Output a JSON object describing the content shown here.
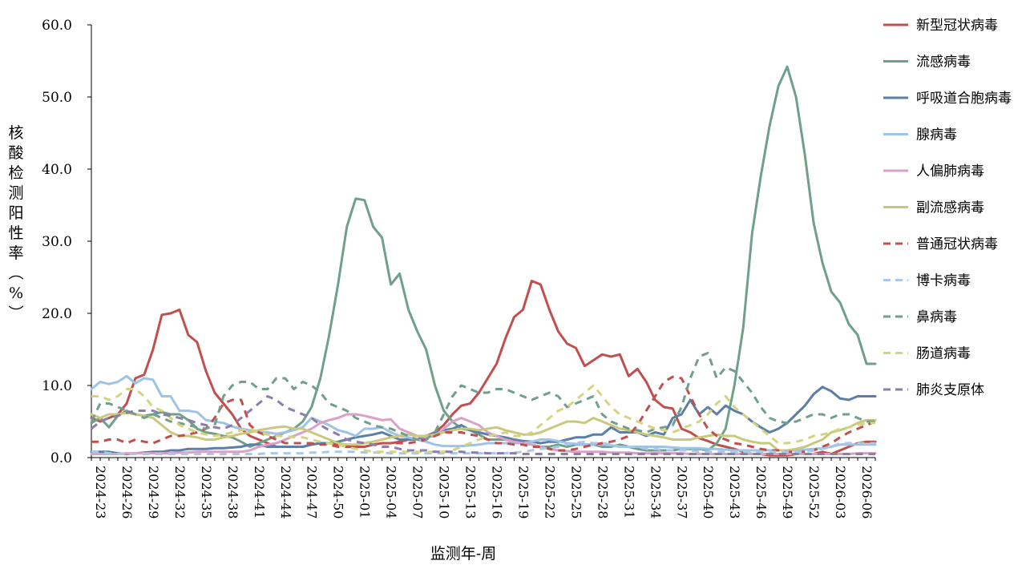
{
  "chart_data": {
    "type": "line",
    "xlabel": "监测年-周",
    "ylabel": "核酸检测阳性率（%）",
    "ylim": [
      0,
      60
    ],
    "yticks": [
      "0.0",
      "10.0",
      "20.0",
      "30.0",
      "40.0",
      "50.0",
      "60.0"
    ],
    "x_tick_labels": [
      "2024-23",
      "2024-26",
      "2024-29",
      "2024-32",
      "2024-35",
      "2024-38",
      "2024-41",
      "2024-44",
      "2024-47",
      "2024-50",
      "2025-01",
      "2025-04",
      "2025-07",
      "2025-10",
      "2025-13",
      "2025-16",
      "2025-19",
      "2025-22",
      "2025-25",
      "2025-28",
      "2025-31",
      "2025-34",
      "2025-37",
      "2025-40",
      "2025-43",
      "2025-46",
      "2025-49",
      "2025-52",
      "2026-03",
      "2026-06"
    ],
    "x": [
      "2024-23",
      "2024-24",
      "2024-25",
      "2024-26",
      "2024-27",
      "2024-28",
      "2024-29",
      "2024-30",
      "2024-31",
      "2024-32",
      "2024-33",
      "2024-34",
      "2024-35",
      "2024-36",
      "2024-37",
      "2024-38",
      "2024-39",
      "2024-40",
      "2024-41",
      "2024-42",
      "2024-43",
      "2024-44",
      "2024-45",
      "2024-46",
      "2024-47",
      "2024-48",
      "2024-49",
      "2024-50",
      "2024-51",
      "2024-52",
      "2025-01",
      "2025-02",
      "2025-03",
      "2025-04",
      "2025-05",
      "2025-06",
      "2025-07",
      "2025-08",
      "2025-09",
      "2025-10",
      "2025-11",
      "2025-12",
      "2025-13",
      "2025-14",
      "2025-15",
      "2025-16",
      "2025-17",
      "2025-18",
      "2025-19",
      "2025-20",
      "2025-21",
      "2025-22",
      "2025-23",
      "2025-24",
      "2025-25",
      "2025-26",
      "2025-27",
      "2025-28",
      "2025-29",
      "2025-30",
      "2025-31",
      "2025-32",
      "2025-33",
      "2025-34",
      "2025-35",
      "2025-36",
      "2025-37",
      "2025-38",
      "2025-39",
      "2025-40",
      "2025-41",
      "2025-42",
      "2025-43",
      "2025-44",
      "2025-45",
      "2025-46",
      "2025-47",
      "2025-48",
      "2025-49",
      "2025-50",
      "2025-51",
      "2025-52",
      "2026-01",
      "2026-02",
      "2026-03",
      "2026-04",
      "2026-05",
      "2026-06",
      "2026-07",
      "2026-08"
    ],
    "legend_position": "right",
    "grid": false,
    "series": [
      {
        "name": "新型冠状病毒",
        "color": "#C0504D",
        "style": "solid",
        "values": [
          5.5,
          5.0,
          5.5,
          6.0,
          7.5,
          11.0,
          11.5,
          15.0,
          19.8,
          20.0,
          20.5,
          17.0,
          16.0,
          12.0,
          9.0,
          7.5,
          6.0,
          4.0,
          3.0,
          2.5,
          2.0,
          1.5,
          1.5,
          1.5,
          1.5,
          1.8,
          2.0,
          2.0,
          1.8,
          1.5,
          1.5,
          1.5,
          1.8,
          2.0,
          2.0,
          2.2,
          2.5,
          2.5,
          3.0,
          3.5,
          4.5,
          6.0,
          7.2,
          7.5,
          9.0,
          11.0,
          13.0,
          16.5,
          19.5,
          20.5,
          24.5,
          24.0,
          20.5,
          17.5,
          15.8,
          15.2,
          12.7,
          13.5,
          14.3,
          14.0,
          14.3,
          11.3,
          12.3,
          10.5,
          8.0,
          7.0,
          6.8,
          4.0,
          3.5,
          2.7,
          2.3,
          1.8,
          1.5,
          1.2,
          0.8,
          0.5,
          0.5,
          0.3,
          0.3,
          0.3,
          0.5,
          0.5,
          0.5,
          0.8,
          0.5,
          1.0,
          1.5,
          2.0,
          2.2,
          2.2
        ]
      },
      {
        "name": "流感病毒",
        "color": "#71A08A",
        "style": "solid",
        "values": [
          4.8,
          5.5,
          4.2,
          5.8,
          6.5,
          6.0,
          5.8,
          6.0,
          6.3,
          6.0,
          6.0,
          5.2,
          4.0,
          3.5,
          3.3,
          3.0,
          2.8,
          2.2,
          1.5,
          2.0,
          2.5,
          3.0,
          3.5,
          4.0,
          5.0,
          7.0,
          11.0,
          17.0,
          24.0,
          32.0,
          35.9,
          35.7,
          32.0,
          30.5,
          24.0,
          25.5,
          20.5,
          17.5,
          15.0,
          10.0,
          6.5,
          5.0,
          4.0,
          3.8,
          3.2,
          2.5,
          2.5,
          2.5,
          2.2,
          2.0,
          1.8,
          1.5,
          1.5,
          1.8,
          1.5,
          1.8,
          1.8,
          1.8,
          1.5,
          1.5,
          1.8,
          1.5,
          1.2,
          1.0,
          1.0,
          1.0,
          1.0,
          1.2,
          1.2,
          1.2,
          1.0,
          2.0,
          4.0,
          10.0,
          18.0,
          31.0,
          39.0,
          46.0,
          51.5,
          54.2,
          50.0,
          42.0,
          32.5,
          27.0,
          23.0,
          21.5,
          18.5,
          17.0,
          13.0,
          13.0
        ]
      },
      {
        "name": "呼吸道合胞病毒",
        "color": "#5B7FA8",
        "style": "solid",
        "values": [
          0.8,
          0.8,
          0.8,
          0.6,
          0.5,
          0.6,
          0.7,
          0.8,
          0.8,
          1.0,
          1.0,
          1.2,
          1.2,
          1.2,
          1.3,
          1.3,
          1.4,
          1.5,
          1.8,
          1.8,
          1.5,
          1.5,
          1.5,
          1.5,
          1.5,
          1.8,
          2.0,
          2.0,
          2.2,
          2.5,
          2.8,
          3.0,
          3.2,
          3.5,
          3.0,
          2.5,
          2.5,
          2.5,
          2.8,
          3.5,
          3.8,
          4.0,
          4.5,
          3.8,
          3.5,
          3.2,
          3.0,
          2.8,
          2.5,
          2.3,
          2.2,
          2.0,
          2.2,
          2.2,
          2.5,
          2.8,
          2.8,
          3.2,
          3.2,
          4.2,
          3.5,
          3.5,
          3.5,
          3.0,
          3.5,
          3.2,
          5.5,
          6.0,
          8.0,
          6.0,
          7.0,
          6.0,
          7.2,
          6.5,
          6.0,
          5.0,
          4.2,
          3.5,
          4.0,
          4.8,
          6.0,
          7.2,
          8.8,
          9.8,
          9.2,
          8.2,
          8.0,
          8.5,
          8.5,
          8.5
        ]
      },
      {
        "name": "腺病毒",
        "color": "#9DC3E6",
        "style": "solid",
        "values": [
          9.5,
          10.5,
          10.2,
          10.5,
          11.3,
          10.3,
          11.0,
          10.8,
          8.5,
          8.5,
          6.5,
          6.5,
          6.3,
          5.2,
          5.0,
          4.8,
          4.3,
          4.0,
          3.8,
          3.5,
          3.5,
          3.3,
          3.5,
          3.8,
          4.2,
          5.5,
          5.0,
          4.5,
          3.8,
          3.5,
          3.0,
          4.0,
          4.0,
          4.2,
          3.5,
          3.0,
          2.8,
          2.5,
          2.2,
          1.8,
          1.6,
          1.6,
          1.6,
          1.7,
          1.8,
          2.0,
          2.0,
          2.0,
          2.0,
          2.0,
          2.2,
          2.5,
          2.5,
          2.3,
          2.0,
          1.9,
          1.8,
          1.8,
          1.8,
          1.7,
          1.5,
          1.5,
          1.5,
          1.5,
          1.5,
          1.5,
          1.4,
          1.3,
          1.3,
          1.3,
          1.2,
          1.2,
          1.1,
          1.0,
          1.0,
          1.0,
          1.0,
          1.0,
          1.0,
          1.0,
          1.0,
          1.1,
          1.2,
          1.3,
          1.5,
          1.8,
          1.8,
          1.8,
          1.8,
          1.8
        ]
      },
      {
        "name": "人偏肺病毒",
        "color": "#D9A1C8",
        "style": "solid",
        "values": [
          0.5,
          0.5,
          0.5,
          0.5,
          0.6,
          0.6,
          0.6,
          0.6,
          0.6,
          0.6,
          0.7,
          0.7,
          0.8,
          0.8,
          0.8,
          0.8,
          0.8,
          0.8,
          1.0,
          1.5,
          1.8,
          2.0,
          2.5,
          3.0,
          3.5,
          4.0,
          4.8,
          5.2,
          5.5,
          6.0,
          6.0,
          5.8,
          5.5,
          5.2,
          5.3,
          4.0,
          3.5,
          3.0,
          2.8,
          3.0,
          4.0,
          5.0,
          5.5,
          5.0,
          4.5,
          3.5,
          3.0,
          2.5,
          2.2,
          2.0,
          1.8,
          1.5,
          1.2,
          1.0,
          0.9,
          0.8,
          0.8,
          0.8,
          0.8,
          0.7,
          0.7,
          0.7,
          0.6,
          0.6,
          0.6,
          0.6,
          0.6,
          0.6,
          0.5,
          0.5,
          0.5,
          0.5,
          0.5,
          0.5,
          0.5,
          0.5,
          0.5,
          0.5,
          0.5,
          0.5,
          0.5,
          0.5,
          0.5,
          0.5,
          0.5,
          0.5,
          0.5,
          0.6,
          0.6,
          0.6
        ]
      },
      {
        "name": "副流感病毒",
        "color": "#C9C97E",
        "style": "solid",
        "values": [
          6.0,
          5.5,
          6.0,
          6.0,
          6.2,
          6.0,
          5.8,
          5.5,
          4.5,
          3.5,
          3.0,
          3.0,
          2.8,
          2.5,
          2.5,
          2.8,
          3.0,
          3.3,
          3.5,
          3.8,
          4.0,
          4.2,
          4.3,
          4.0,
          4.0,
          3.5,
          3.0,
          2.5,
          2.0,
          1.8,
          1.8,
          2.0,
          2.2,
          2.5,
          2.8,
          3.0,
          3.2,
          3.0,
          3.0,
          3.2,
          3.5,
          3.8,
          4.0,
          4.0,
          3.8,
          4.0,
          4.2,
          3.8,
          3.5,
          3.2,
          3.2,
          3.5,
          4.0,
          4.5,
          5.0,
          5.0,
          4.8,
          5.5,
          5.0,
          4.5,
          4.0,
          3.8,
          3.5,
          3.2,
          3.0,
          2.8,
          2.5,
          2.5,
          2.5,
          2.8,
          3.0,
          3.2,
          3.0,
          3.0,
          2.5,
          2.2,
          2.0,
          2.0,
          1.0,
          1.0,
          1.2,
          1.5,
          2.0,
          2.5,
          3.5,
          3.8,
          4.2,
          4.8,
          5.2,
          5.2
        ]
      },
      {
        "name": "普通冠状病毒",
        "color": "#C0504D",
        "style": "dashed",
        "values": [
          2.2,
          2.2,
          2.5,
          2.5,
          2.0,
          2.5,
          2.2,
          2.0,
          2.5,
          3.0,
          3.0,
          3.2,
          3.5,
          4.0,
          5.5,
          7.5,
          8.0,
          8.0,
          4.5,
          3.5,
          3.0,
          2.5,
          2.0,
          2.0,
          2.0,
          2.0,
          1.8,
          1.8,
          1.5,
          1.5,
          1.5,
          1.5,
          1.8,
          2.0,
          2.0,
          2.0,
          2.0,
          2.2,
          2.5,
          3.0,
          3.5,
          3.5,
          3.5,
          3.2,
          3.0,
          2.5,
          2.0,
          2.0,
          1.8,
          1.8,
          1.5,
          1.5,
          1.2,
          1.0,
          1.0,
          1.2,
          1.5,
          1.8,
          2.0,
          2.2,
          2.5,
          3.0,
          4.5,
          6.5,
          8.5,
          10.5,
          11.2,
          11.0,
          8.5,
          6.0,
          4.0,
          3.0,
          2.5,
          2.0,
          1.8,
          1.5,
          1.2,
          1.0,
          1.0,
          0.8,
          0.8,
          0.8,
          1.0,
          1.5,
          2.0,
          2.8,
          3.5,
          4.0,
          4.5,
          5.0
        ]
      },
      {
        "name": "博卡病毒",
        "color": "#A9C8E8",
        "style": "dashed",
        "values": [
          0.8,
          0.8,
          0.6,
          0.5,
          0.5,
          0.5,
          0.5,
          0.5,
          0.5,
          0.5,
          0.5,
          0.5,
          0.5,
          0.5,
          0.5,
          0.5,
          0.5,
          0.5,
          0.5,
          0.5,
          0.6,
          0.6,
          0.6,
          0.6,
          0.6,
          0.7,
          0.7,
          0.8,
          0.8,
          0.8,
          0.8,
          0.7,
          0.7,
          0.7,
          0.6,
          0.6,
          0.6,
          0.6,
          0.6,
          0.6,
          0.6,
          0.6,
          0.6,
          0.6,
          0.6,
          0.6,
          0.6,
          0.6,
          0.7,
          0.8,
          1.0,
          1.2,
          1.3,
          1.5,
          1.8,
          2.0,
          2.2,
          2.0,
          2.0,
          1.8,
          1.5,
          1.5,
          1.5,
          1.2,
          1.2,
          1.0,
          1.0,
          1.0,
          1.0,
          0.8,
          0.8,
          0.8,
          0.8,
          0.8,
          0.8,
          0.8,
          0.8,
          0.8,
          0.8,
          0.8,
          0.8,
          0.8,
          1.0,
          1.2,
          1.5,
          2.0,
          2.0,
          2.0,
          2.0,
          2.0
        ]
      },
      {
        "name": "鼻病毒",
        "color": "#71A08A",
        "style": "dashed",
        "values": [
          5.0,
          7.5,
          7.5,
          7.0,
          6.5,
          6.0,
          5.5,
          6.0,
          5.5,
          5.0,
          4.8,
          4.5,
          4.2,
          4.0,
          4.5,
          8.5,
          10.0,
          10.5,
          10.5,
          9.5,
          9.5,
          11.0,
          11.0,
          9.5,
          10.5,
          10.0,
          9.0,
          7.5,
          7.0,
          6.5,
          5.5,
          5.0,
          4.5,
          4.2,
          4.0,
          3.5,
          3.0,
          2.5,
          2.5,
          3.5,
          6.0,
          8.5,
          10.0,
          9.5,
          9.0,
          9.0,
          9.5,
          9.5,
          9.0,
          8.5,
          8.0,
          8.5,
          9.0,
          8.5,
          7.0,
          7.5,
          8.0,
          8.5,
          6.0,
          5.0,
          4.5,
          4.0,
          3.8,
          3.5,
          4.0,
          4.2,
          4.5,
          7.0,
          11.0,
          14.0,
          14.5,
          11.0,
          12.5,
          12.0,
          10.5,
          9.0,
          7.0,
          5.5,
          5.0,
          4.8,
          5.0,
          5.5,
          6.0,
          6.0,
          5.5,
          6.0,
          6.0,
          5.5,
          5.0,
          5.0
        ]
      },
      {
        "name": "肠道病毒",
        "color": "#D4D480",
        "style": "dashed",
        "values": [
          8.5,
          8.5,
          8.0,
          8.5,
          9.5,
          9.5,
          8.5,
          7.0,
          6.5,
          5.5,
          4.5,
          4.0,
          3.5,
          3.2,
          3.0,
          3.2,
          3.5,
          3.8,
          4.0,
          3.5,
          3.2,
          3.0,
          3.0,
          2.8,
          2.8,
          2.5,
          2.2,
          2.0,
          1.8,
          1.5,
          1.2,
          1.0,
          0.8,
          0.8,
          0.8,
          0.8,
          0.8,
          0.8,
          0.8,
          0.8,
          0.8,
          1.0,
          1.5,
          2.0,
          2.5,
          3.0,
          3.2,
          3.5,
          3.0,
          3.0,
          3.5,
          4.5,
          5.5,
          6.5,
          7.0,
          8.0,
          9.0,
          10.0,
          8.5,
          7.0,
          6.0,
          5.5,
          5.0,
          4.5,
          4.0,
          3.8,
          3.5,
          4.0,
          4.5,
          5.0,
          6.0,
          7.5,
          8.5,
          7.0,
          6.0,
          5.0,
          4.0,
          3.0,
          2.0,
          2.0,
          2.2,
          2.5,
          3.0,
          3.2,
          3.5,
          4.0,
          4.2,
          4.5,
          4.8,
          4.8
        ]
      },
      {
        "name": "肺炎支原体",
        "color": "#8C7DAA",
        "style": "dashed",
        "values": [
          4.0,
          5.0,
          5.5,
          5.8,
          6.2,
          6.5,
          6.5,
          6.5,
          6.0,
          5.8,
          5.5,
          5.2,
          4.8,
          4.5,
          4.2,
          4.0,
          4.5,
          5.5,
          6.5,
          7.5,
          8.5,
          8.0,
          7.0,
          6.5,
          6.0,
          5.5,
          4.5,
          3.8,
          3.2,
          2.5,
          2.2,
          2.0,
          1.8,
          1.5,
          1.5,
          1.2,
          1.0,
          1.0,
          1.0,
          0.8,
          0.8,
          0.8,
          0.8,
          0.7,
          0.7,
          0.6,
          0.6,
          0.6,
          0.6,
          0.5,
          0.5,
          0.5,
          0.5,
          0.5,
          0.5,
          0.5,
          0.5,
          0.5,
          0.5,
          0.5,
          0.5,
          0.5,
          0.5,
          0.5,
          0.5,
          0.5,
          0.5,
          0.5,
          0.5,
          0.5,
          0.5,
          0.5,
          0.5,
          0.5,
          0.5,
          0.5,
          0.5,
          0.5,
          0.5,
          0.5,
          0.5,
          0.5,
          0.5,
          0.5,
          0.5,
          0.5,
          0.5,
          0.5,
          0.5,
          0.5
        ]
      }
    ]
  }
}
